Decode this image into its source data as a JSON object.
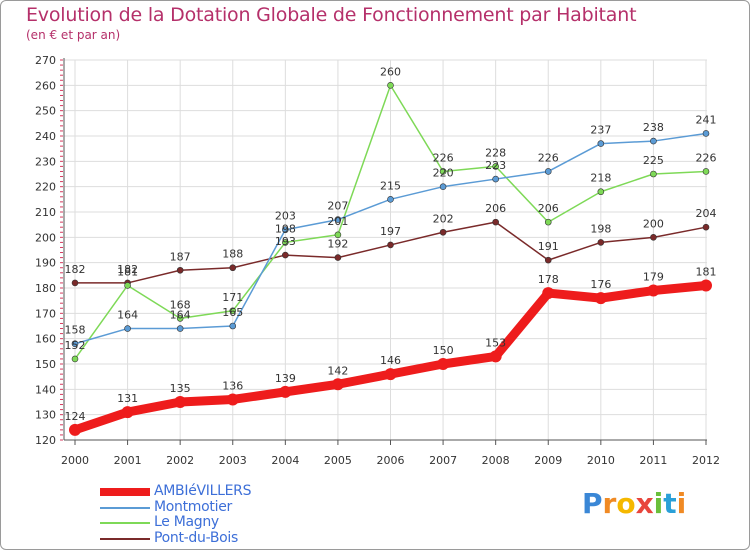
{
  "header": {
    "title": "Evolution de la Dotation Globale de Fonctionnement par Habitant",
    "subtitle": "(en € et par an)"
  },
  "logo": {
    "letters": [
      "P",
      "r",
      "o",
      "x",
      "i",
      "t",
      "i"
    ],
    "colors": [
      "#3a87d6",
      "#f08a24",
      "#f5b800",
      "#e8453c",
      "#6abf3a",
      "#2aa0d8",
      "#f08a24"
    ]
  },
  "colors": {
    "grid": "#dddddd",
    "axis": "#555555",
    "tick": "#d63a5e",
    "text": "#333333"
  },
  "chart_data": {
    "type": "line",
    "title": "Evolution de la Dotation Globale de Fonctionnement par Habitant",
    "subtitle": "(en € et par an)",
    "xlabel": "",
    "ylabel": "",
    "categories": [
      "2000",
      "2001",
      "2002",
      "2003",
      "2004",
      "2005",
      "2006",
      "2007",
      "2008",
      "2009",
      "2010",
      "2011",
      "2012"
    ],
    "ylim": [
      120,
      270
    ],
    "yticks": [
      120,
      130,
      140,
      150,
      160,
      170,
      180,
      190,
      200,
      210,
      220,
      230,
      240,
      250,
      260,
      270
    ],
    "grid": true,
    "legend_position": "bottom-left",
    "series": [
      {
        "name": "AMBIéVILLERS",
        "color": "#ee1c1c",
        "values": [
          124,
          131,
          135,
          136,
          139,
          142,
          146,
          150,
          153,
          178,
          176,
          179,
          181
        ]
      },
      {
        "name": "Montmotier",
        "color": "#5b9bd5",
        "values": [
          158,
          164,
          164,
          165,
          203,
          207,
          215,
          220,
          223,
          226,
          237,
          238,
          241
        ]
      },
      {
        "name": "Le Magny",
        "color": "#7ed957",
        "values": [
          152,
          181,
          168,
          171,
          198,
          201,
          260,
          226,
          228,
          206,
          218,
          225,
          226
        ]
      },
      {
        "name": "Pont-du-Bois",
        "color": "#7a2a2a",
        "values": [
          182,
          182,
          187,
          188,
          193,
          192,
          197,
          202,
          206,
          191,
          198,
          200,
          204
        ]
      }
    ],
    "data_labels": [
      {
        "series": 0,
        "labels": [
          "124",
          "131",
          "135",
          "136",
          "139",
          "142",
          "146",
          "150",
          "153",
          "178",
          "176",
          "179",
          "181"
        ]
      },
      {
        "series": 1,
        "labels": [
          "158",
          "164",
          "164",
          "165",
          "203",
          "207",
          "215",
          "220",
          "223",
          "226",
          "237",
          "238",
          "241"
        ]
      },
      {
        "series": 2,
        "labels": [
          "152",
          "181",
          "168",
          "171",
          "198",
          "201",
          "260",
          "226",
          "228",
          "206",
          "218",
          "225",
          "226"
        ]
      },
      {
        "series": 3,
        "labels": [
          "182",
          "182",
          "187",
          "188",
          "193",
          "192",
          "197",
          "202",
          "206",
          "191",
          "198",
          "200",
          "204"
        ]
      }
    ]
  }
}
